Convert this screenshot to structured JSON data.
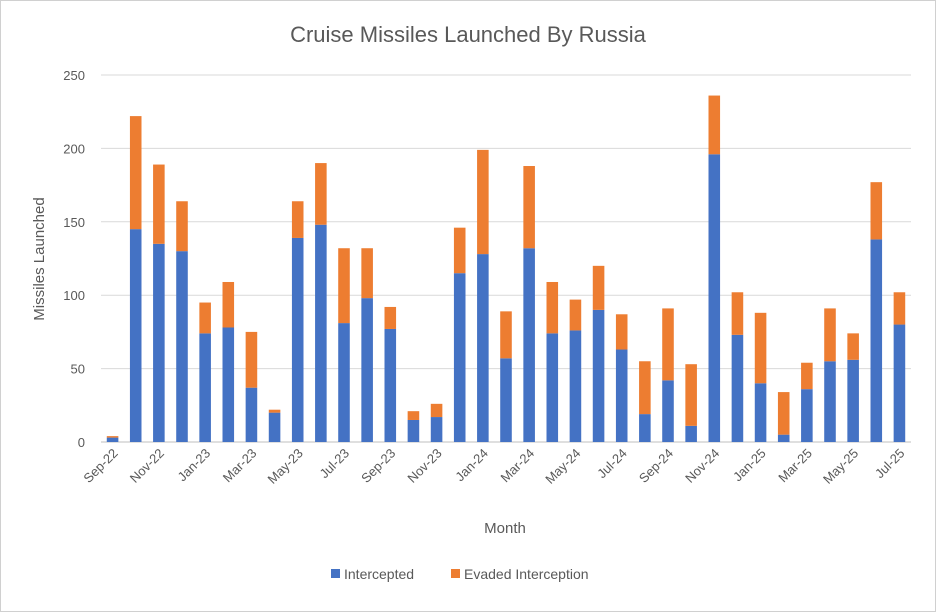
{
  "chart_data": {
    "type": "bar",
    "stacked": true,
    "title": "Cruise Missiles Launched By Russia",
    "xlabel": "Month",
    "ylabel": "Missiles Launched",
    "ylim": [
      0,
      250
    ],
    "yticks": [
      0,
      50,
      100,
      150,
      200,
      250
    ],
    "grid": true,
    "legend_position": "bottom",
    "categories": [
      "Sep-22",
      "Oct-22",
      "Nov-22",
      "Dec-22",
      "Jan-23",
      "Feb-23",
      "Mar-23",
      "Apr-23",
      "May-23",
      "Jun-23",
      "Jul-23",
      "Aug-23",
      "Sep-23",
      "Oct-23",
      "Nov-23",
      "Dec-23",
      "Jan-24",
      "Feb-24",
      "Mar-24",
      "Apr-24",
      "May-24",
      "Jun-24",
      "Jul-24",
      "Aug-24",
      "Sep-24",
      "Oct-24",
      "Nov-24",
      "Dec-24",
      "Jan-25",
      "Feb-25",
      "Mar-25",
      "Apr-25",
      "May-25",
      "Jun-25",
      "Jul-25"
    ],
    "tick_labels": [
      "Sep-22",
      "Nov-22",
      "Jan-23",
      "Mar-23",
      "May-23",
      "Jul-23",
      "Sep-23",
      "Nov-23",
      "Jan-24",
      "Mar-24",
      "May-24",
      "Jul-24",
      "Sep-24",
      "Nov-24",
      "Jan-25",
      "Mar-25",
      "May-25",
      "Jul-25"
    ],
    "series": [
      {
        "name": "Intercepted",
        "color": "#4472C4",
        "values": [
          3,
          145,
          135,
          130,
          74,
          78,
          37,
          20,
          139,
          148,
          81,
          98,
          77,
          15,
          17,
          115,
          128,
          57,
          132,
          74,
          76,
          90,
          63,
          19,
          42,
          11,
          196,
          73,
          40,
          5,
          36,
          55,
          56,
          138,
          80
        ]
      },
      {
        "name": "Evaded Interception",
        "color": "#ED7D31",
        "values": [
          1,
          77,
          54,
          34,
          21,
          31,
          38,
          2,
          25,
          42,
          51,
          34,
          15,
          6,
          9,
          31,
          71,
          32,
          56,
          35,
          21,
          30,
          24,
          36,
          49,
          42,
          40,
          29,
          48,
          29,
          18,
          36,
          18,
          39,
          22
        ]
      }
    ]
  }
}
